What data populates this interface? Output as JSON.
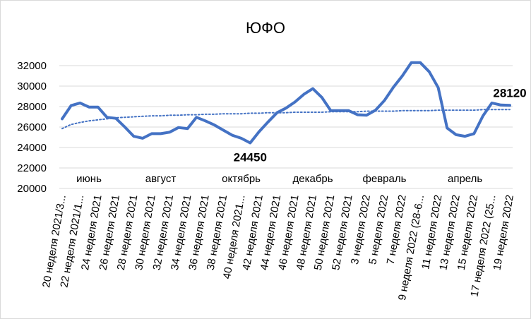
{
  "chart_data": {
    "type": "line",
    "title": "ЮФО",
    "xlabel": "",
    "ylabel": "",
    "ylim": [
      20000,
      32000
    ],
    "yticks": [
      20000,
      22000,
      24000,
      26000,
      28000,
      30000,
      32000
    ],
    "x_tick_labels": [
      "20 неделя 2021/3...",
      "22 неделя 2021/1...",
      "24 неделя 2021",
      "26 неделя 2021",
      "28 неделя 2021",
      "30 неделя 2021",
      "32 неделя 2021",
      "34 неделя 2021",
      "36 неделя 2021",
      "38 неделя 2021",
      "40 неделя 2021...",
      "42 неделя 2021",
      "44 неделя 2021",
      "46 неделя 2021",
      "48 неделя 2021",
      "50 неделя 2021",
      "52 неделя 2021",
      "3 неделя 2022",
      "5 неделя 2022",
      "7 неделя 2022",
      "9 неделя 2022 (28-6...",
      "11 неделя 2022",
      "13 неделя 2022",
      "15 неделя 2022",
      "17 неделя 2022 (25...",
      "19 неделя 2022"
    ],
    "month_labels": [
      {
        "text": "июнь",
        "at_point": 3
      },
      {
        "text": "август",
        "at_point": 11
      },
      {
        "text": "октябрь",
        "at_point": 20
      },
      {
        "text": "декабрь",
        "at_point": 28
      },
      {
        "text": "февраль",
        "at_point": 36
      },
      {
        "text": "апрель",
        "at_point": 45
      }
    ],
    "series": [
      {
        "style": "solid",
        "color": "#4472C4",
        "values": [
          26800,
          28100,
          28350,
          27950,
          27950,
          26950,
          26850,
          26000,
          25100,
          24900,
          25350,
          25350,
          25500,
          25950,
          25850,
          26950,
          26600,
          26200,
          25700,
          25200,
          24900,
          24450,
          25550,
          26500,
          27400,
          27850,
          28450,
          29200,
          29750,
          28900,
          27600,
          27600,
          27600,
          27200,
          27150,
          27650,
          28600,
          29900,
          31000,
          32300,
          32300,
          31400,
          29850,
          25900,
          25250,
          25100,
          25350,
          27100,
          28350,
          28150,
          28120
        ]
      },
      {
        "style": "dotted trendline",
        "color": "#4472C4",
        "values": [
          25850,
          26250,
          26450,
          26600,
          26700,
          26800,
          26900,
          26950,
          27000,
          27050,
          27100,
          27100,
          27150,
          27150,
          27200,
          27200,
          27250,
          27250,
          27300,
          27300,
          27300,
          27350,
          27350,
          27400,
          27400,
          27400,
          27450,
          27450,
          27450,
          27450,
          27500,
          27500,
          27500,
          27500,
          27550,
          27550,
          27550,
          27550,
          27600,
          27600,
          27600,
          27600,
          27650,
          27650,
          27650,
          27650,
          27650,
          27700,
          27700,
          27700,
          27700
        ]
      }
    ],
    "annotations": [
      {
        "text": "24450",
        "at_point": 21
      },
      {
        "text": "28120",
        "at_point": 50
      }
    ],
    "grid": true,
    "legend": "none"
  }
}
